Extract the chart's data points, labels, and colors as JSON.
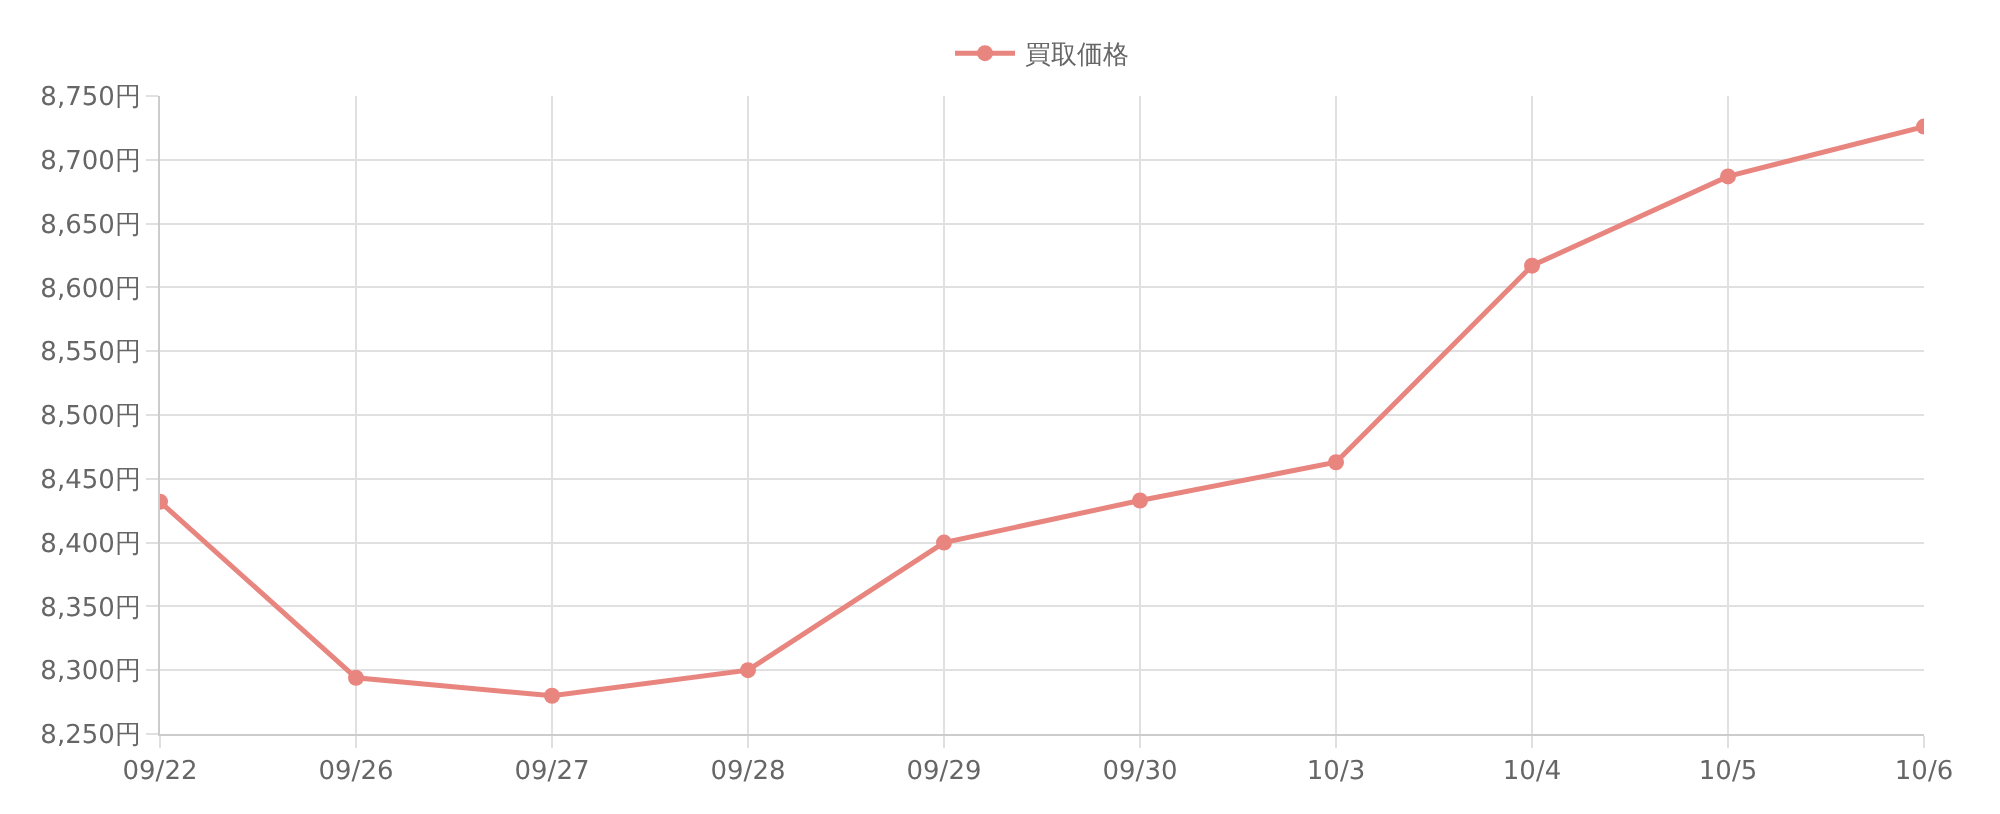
{
  "chart_data": {
    "type": "line",
    "categories": [
      "09/22",
      "09/26",
      "09/27",
      "09/28",
      "09/29",
      "09/30",
      "10/3",
      "10/4",
      "10/5",
      "10/6"
    ],
    "series": [
      {
        "name": "買取価格",
        "color": "#e8857f",
        "values": [
          8432,
          8294,
          8280,
          8300,
          8400,
          8433,
          8463,
          8617,
          8687,
          8726
        ]
      }
    ],
    "ylim": [
      8250,
      8750
    ],
    "yticks": [
      {
        "value": 8250,
        "label": "8,250円"
      },
      {
        "value": 8300,
        "label": "8,300円"
      },
      {
        "value": 8350,
        "label": "8,350円"
      },
      {
        "value": 8400,
        "label": "8,400円"
      },
      {
        "value": 8450,
        "label": "8,450円"
      },
      {
        "value": 8500,
        "label": "8,500円"
      },
      {
        "value": 8550,
        "label": "8,550円"
      },
      {
        "value": 8600,
        "label": "8,600円"
      },
      {
        "value": 8650,
        "label": "8,650円"
      },
      {
        "value": 8700,
        "label": "8,700円"
      },
      {
        "value": 8750,
        "label": "8,750円"
      }
    ],
    "grid": true,
    "legend": "top",
    "marker": "circle",
    "line_style": "solid"
  }
}
